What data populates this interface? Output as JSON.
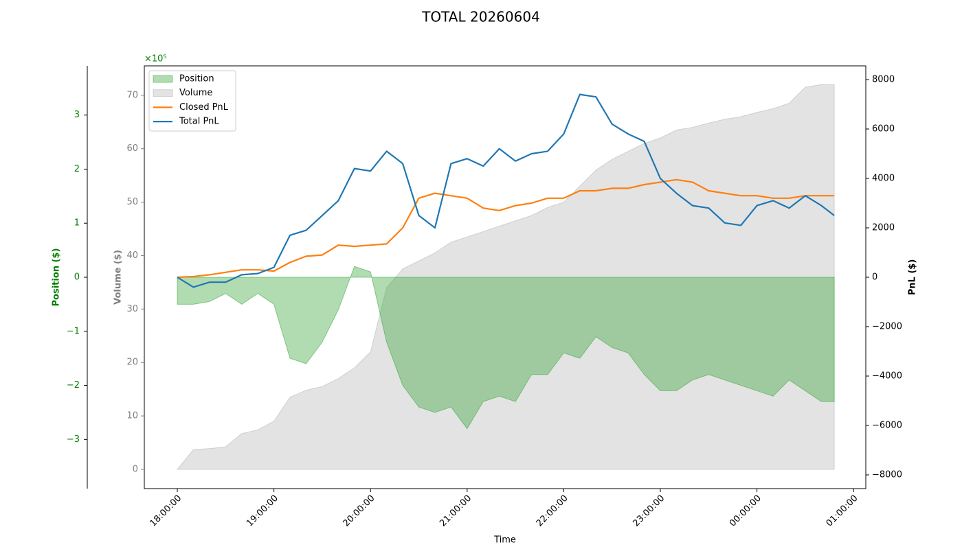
{
  "chart_data": {
    "type": "multi-axis-line",
    "title": "TOTAL 20260604",
    "xlabel": "Time",
    "ylabel": "Volume ($)",
    "y2label": "PnL ($)",
    "y3label": "Position ($)",
    "y3_offset_label": "×10⁵",
    "ylim": [
      -3.6,
      75.5
    ],
    "y2lim": [
      -8556,
      8556
    ],
    "y3lim": [
      -3.91,
      3.91
    ],
    "xlim": [
      -20.5,
      427.6
    ],
    "yticks": [
      0,
      10,
      20,
      30,
      40,
      50,
      60,
      70
    ],
    "y2ticks": [
      {
        "value": -8000,
        "label": "−8000"
      },
      {
        "value": -6000,
        "label": "−6000"
      },
      {
        "value": -4000,
        "label": "−4000"
      },
      {
        "value": -2000,
        "label": "−2000"
      },
      0,
      2000,
      4000,
      6000,
      8000
    ],
    "y3ticks": [
      {
        "value": -3,
        "label": "−3"
      },
      {
        "value": -2,
        "label": "−2"
      },
      {
        "value": -1,
        "label": "−1"
      },
      0,
      1,
      2,
      3
    ],
    "xticks": [
      {
        "value": 0,
        "label": "18:00:00"
      },
      {
        "value": 60,
        "label": "19:00:00"
      },
      {
        "value": 120,
        "label": "20:00:00"
      },
      {
        "value": 180,
        "label": "21:00:00"
      },
      {
        "value": 240,
        "label": "22:00:00"
      },
      {
        "value": 300,
        "label": "23:00:00"
      },
      {
        "value": 360,
        "label": "00:00:00"
      },
      {
        "value": 420,
        "label": "01:00:00"
      }
    ],
    "legend": "upper left",
    "x": [
      0,
      10,
      20,
      30,
      40,
      50,
      60,
      70,
      80,
      90,
      100,
      110,
      120,
      130,
      140,
      150,
      160,
      170,
      180,
      190,
      200,
      210,
      220,
      230,
      240,
      250,
      260,
      270,
      280,
      290,
      300,
      310,
      320,
      330,
      340,
      350,
      360,
      370,
      380,
      390,
      400,
      408
    ],
    "series": [
      {
        "name": "Position",
        "kind": "area",
        "axis": "y3",
        "color": "#2ca02c",
        "alpha": 0.37,
        "values": [
          -0.5,
          -0.5,
          -0.45,
          -0.3,
          -0.5,
          -0.3,
          -0.5,
          -1.5,
          -1.6,
          -1.2,
          -0.6,
          0.2,
          0.1,
          -1.2,
          -2.0,
          -2.4,
          -2.5,
          -2.4,
          -2.8,
          -2.3,
          -2.2,
          -2.3,
          -1.8,
          -1.8,
          -1.4,
          -1.5,
          -1.1,
          -1.3,
          -1.4,
          -1.8,
          -2.1,
          -2.1,
          -1.9,
          -1.8,
          -1.9,
          -2.0,
          -2.1,
          -2.2,
          -1.9,
          -2.1,
          -2.3,
          -2.3
        ]
      },
      {
        "name": "Volume",
        "kind": "area",
        "axis": "y",
        "color": "#b0b0b0",
        "alpha": 0.35,
        "values": [
          0,
          3.7,
          3.9,
          4.2,
          6.7,
          7.4,
          9,
          13.5,
          14.8,
          15.5,
          17,
          19,
          22,
          34,
          37.5,
          39,
          40.5,
          42.5,
          43.5,
          44.5,
          45.5,
          46.5,
          47.5,
          49,
          50,
          53,
          56,
          58,
          59.5,
          61,
          62,
          63.5,
          64,
          64.8,
          65.5,
          66,
          66.8,
          67.5,
          68.5,
          71.5,
          72,
          72
        ]
      },
      {
        "name": "Closed PnL",
        "kind": "line",
        "axis": "y2",
        "color": "#ff7f0e",
        "values": [
          0,
          30,
          100,
          200,
          300,
          300,
          250,
          600,
          850,
          900,
          1300,
          1250,
          1300,
          1350,
          2000,
          3200,
          3400,
          3300,
          3200,
          2800,
          2700,
          2900,
          3000,
          3200,
          3200,
          3500,
          3500,
          3600,
          3600,
          3750,
          3850,
          3950,
          3850,
          3500,
          3400,
          3300,
          3300,
          3200,
          3200,
          3300,
          3300,
          3300
        ]
      },
      {
        "name": "Total PnL",
        "kind": "line",
        "axis": "y2",
        "color": "#1f77b4",
        "values": [
          0,
          -400,
          -200,
          -200,
          100,
          150,
          400,
          1700,
          1900,
          2500,
          3100,
          4400,
          4300,
          5100,
          4600,
          2500,
          2000,
          4600,
          4800,
          4500,
          5200,
          4700,
          5000,
          5100,
          5800,
          7400,
          7300,
          6200,
          5800,
          5500,
          4000,
          3400,
          2900,
          2800,
          2200,
          2100,
          2900,
          3100,
          2800,
          3300,
          2900,
          2500
        ]
      }
    ]
  }
}
